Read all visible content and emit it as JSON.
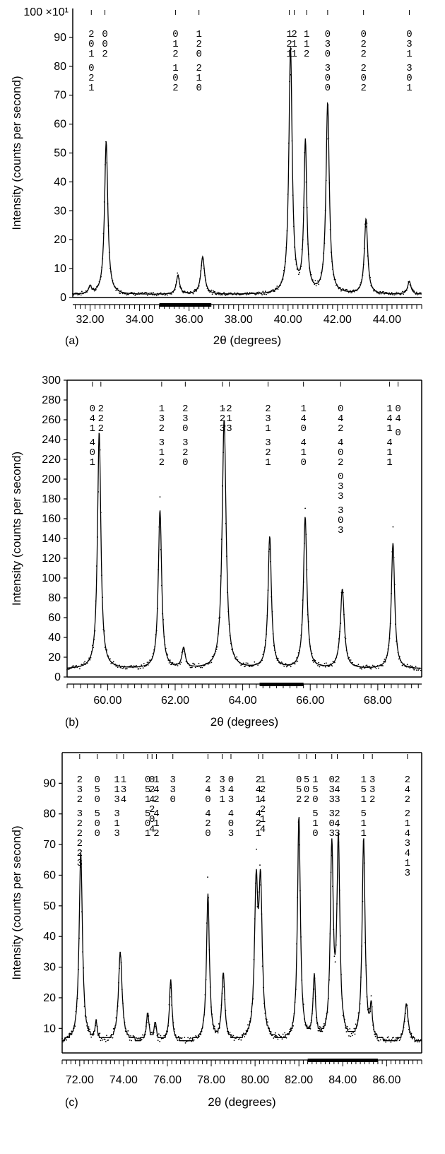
{
  "chart_data": [
    {
      "panel_label": "(a)",
      "type": "line",
      "xlabel": "2θ (degrees)",
      "ylabel": "Intensity (counts per second)",
      "y_multiplier": "×10¹",
      "top_tick_label": "100",
      "xlim": [
        31.3,
        45.4
      ],
      "ylim": [
        0,
        100
      ],
      "xticks": [
        "32.00",
        "34.00",
        "36.00",
        "38.00",
        "40.00",
        "42.00",
        "44.00"
      ],
      "yticks": [
        "0",
        "10",
        "20",
        "30",
        "40",
        "50",
        "60",
        "70",
        "80",
        "90"
      ],
      "peaks": [
        {
          "x": 32.0,
          "h": 2.5,
          "w": 0.07
        },
        {
          "x": 32.65,
          "h": 53,
          "w": 0.08
        },
        {
          "x": 35.55,
          "h": 6.5,
          "w": 0.08
        },
        {
          "x": 36.55,
          "h": 13,
          "w": 0.09
        },
        {
          "x": 40.1,
          "h": 85,
          "w": 0.08
        },
        {
          "x": 40.7,
          "h": 52,
          "w": 0.07
        },
        {
          "x": 41.6,
          "h": 66,
          "w": 0.08
        },
        {
          "x": 43.15,
          "h": 26,
          "w": 0.08
        },
        {
          "x": 44.9,
          "h": 4.5,
          "w": 0.08
        }
      ],
      "background": 1,
      "excluded_range": [
        34.8,
        36.9
      ],
      "reflections": [
        {
          "x": 32.05,
          "cols": [
            "2 0 1",
            "0 2 1"
          ]
        },
        {
          "x": 32.6,
          "cols": [
            "0 0 2"
          ]
        },
        {
          "x": 35.45,
          "cols": [
            "0 1 2",
            "1 0 2"
          ]
        },
        {
          "x": 36.4,
          "cols": [
            "1 2 0",
            "2 1 0"
          ]
        },
        {
          "x": 40.05,
          "cols": [
            "1 2 1"
          ]
        },
        {
          "x": 40.25,
          "cols": [
            "2 1 1"
          ]
        },
        {
          "x": 40.75,
          "cols": [
            "1 1 2"
          ]
        },
        {
          "x": 41.6,
          "cols": [
            "0 3 0",
            "3 0 0"
          ]
        },
        {
          "x": 43.05,
          "cols": [
            "0 2 2",
            "2 0 2"
          ]
        },
        {
          "x": 44.9,
          "cols": [
            "0 3 1",
            "3 0 1"
          ]
        }
      ]
    },
    {
      "panel_label": "(b)",
      "type": "line",
      "xlabel": "2θ (degrees)",
      "ylabel": "Intensity (counts per second)",
      "xlim": [
        58.8,
        69.3
      ],
      "ylim": [
        0,
        300
      ],
      "xticks": [
        "60.00",
        "62.00",
        "64.00",
        "66.00",
        "68.00"
      ],
      "yticks": [
        "0",
        "20",
        "40",
        "60",
        "80",
        "100",
        "120",
        "140",
        "160",
        "180",
        "200",
        "220",
        "240",
        "260",
        "280",
        "300"
      ],
      "peaks": [
        {
          "x": 59.75,
          "h": 240,
          "w": 0.06
        },
        {
          "x": 61.55,
          "h": 160,
          "w": 0.06
        },
        {
          "x": 62.25,
          "h": 20,
          "w": 0.06
        },
        {
          "x": 63.45,
          "h": 252,
          "w": 0.07
        },
        {
          "x": 64.8,
          "h": 133,
          "w": 0.06
        },
        {
          "x": 65.85,
          "h": 153,
          "w": 0.06
        },
        {
          "x": 66.95,
          "h": 80,
          "w": 0.07
        },
        {
          "x": 68.45,
          "h": 127,
          "w": 0.06
        }
      ],
      "background": 8,
      "excluded_range": [
        64.5,
        65.8
      ],
      "reflections": [
        {
          "x": 59.55,
          "cols": [
            "0 4 1",
            "4 0 1"
          ]
        },
        {
          "x": 59.8,
          "cols": [
            "2 2 2"
          ]
        },
        {
          "x": 61.6,
          "cols": [
            "1 3 2",
            "3 1 2"
          ]
        },
        {
          "x": 62.3,
          "cols": [
            "2 3 0",
            "3 2 0"
          ]
        },
        {
          "x": 63.4,
          "cols": [
            "1 2 3"
          ]
        },
        {
          "x": 63.6,
          "cols": [
            "2 1 3"
          ]
        },
        {
          "x": 64.75,
          "cols": [
            "2 3 1",
            "3 2 1"
          ]
        },
        {
          "x": 65.8,
          "cols": [
            "1 4 0",
            "4 1 0"
          ]
        },
        {
          "x": 66.9,
          "cols": [
            "0 4 2",
            "4 0 2",
            "0 3 3",
            "3 0 3"
          ]
        },
        {
          "x": 68.35,
          "cols": [
            "1 4 1",
            "4 1 1"
          ]
        },
        {
          "x": 68.6,
          "cols": [
            "0 4",
            "0"
          ]
        }
      ]
    },
    {
      "panel_label": "(c)",
      "type": "line",
      "xlabel": "2θ (degrees)",
      "ylabel": "Intensity (counts per second)",
      "xlim": [
        71.2,
        87.6
      ],
      "ylim": [
        2,
        100
      ],
      "xticks": [
        "72.00",
        "74.00",
        "76.00",
        "78.00",
        "80.00",
        "82.00",
        "84.00",
        "86.00"
      ],
      "yticks": [
        "10",
        "20",
        "30",
        "40",
        "50",
        "60",
        "70",
        "80",
        "90"
      ],
      "peaks": [
        {
          "x": 72.05,
          "h": 62,
          "w": 0.09
        },
        {
          "x": 72.75,
          "h": 6,
          "w": 0.06
        },
        {
          "x": 73.85,
          "h": 29,
          "w": 0.1
        },
        {
          "x": 75.1,
          "h": 9,
          "w": 0.07
        },
        {
          "x": 75.45,
          "h": 6,
          "w": 0.06
        },
        {
          "x": 76.15,
          "h": 20,
          "w": 0.07
        },
        {
          "x": 77.85,
          "h": 48,
          "w": 0.08
        },
        {
          "x": 78.55,
          "h": 22,
          "w": 0.08
        },
        {
          "x": 80.05,
          "h": 48,
          "w": 0.09
        },
        {
          "x": 80.25,
          "h": 48,
          "w": 0.09
        },
        {
          "x": 82.0,
          "h": 73,
          "w": 0.08
        },
        {
          "x": 82.7,
          "h": 20,
          "w": 0.07
        },
        {
          "x": 83.5,
          "h": 62,
          "w": 0.08
        },
        {
          "x": 83.8,
          "h": 64,
          "w": 0.08
        },
        {
          "x": 84.95,
          "h": 66,
          "w": 0.08
        },
        {
          "x": 85.3,
          "h": 10,
          "w": 0.06
        },
        {
          "x": 86.9,
          "h": 12,
          "w": 0.1
        }
      ],
      "background": 5.5,
      "excluded_range": [
        82.4,
        85.6
      ],
      "reflections": [
        {
          "x": 72.0,
          "cols": [
            "2 3 2",
            "3 2 2 2 2 3"
          ]
        },
        {
          "x": 72.8,
          "cols": [
            "0 5 0",
            "5 0 0"
          ]
        },
        {
          "x": 73.7,
          "cols": [
            "1 1 3",
            "3 1 3"
          ]
        },
        {
          "x": 74.0,
          "cols": [
            "1 3 4"
          ]
        },
        {
          "x": 75.1,
          "cols": [
            "0 5 1",
            "5 0 1"
          ]
        },
        {
          "x": 75.3,
          "cols": [
            "0 2 4 2 0 4"
          ]
        },
        {
          "x": 75.5,
          "cols": [
            "1 4 2",
            "4 1 2"
          ]
        },
        {
          "x": 76.25,
          "cols": [
            "3 3 0"
          ]
        },
        {
          "x": 77.85,
          "cols": [
            "2 4 0",
            "4 2 0"
          ]
        },
        {
          "x": 78.5,
          "cols": [
            "3 3 1"
          ]
        },
        {
          "x": 78.9,
          "cols": [
            "0 4 3",
            "4 0 3"
          ]
        },
        {
          "x": 80.15,
          "cols": [
            "2 4 1",
            "4 2 1"
          ]
        },
        {
          "x": 80.35,
          "cols": [
            "1 2 4 2 1 4"
          ]
        },
        {
          "x": 82.0,
          "cols": [
            "0 5 2"
          ]
        },
        {
          "x": 82.35,
          "cols": [
            "5 0 2"
          ]
        },
        {
          "x": 82.75,
          "cols": [
            "1 5 0",
            "5 1 0"
          ]
        },
        {
          "x": 83.5,
          "cols": [
            "0 3 3",
            "3 0 3"
          ]
        },
        {
          "x": 83.75,
          "cols": [
            "2 4 3",
            "2 4 3"
          ]
        },
        {
          "x": 84.95,
          "cols": [
            "1 5 1",
            "5 1 1"
          ]
        },
        {
          "x": 85.35,
          "cols": [
            "3 3 2"
          ]
        },
        {
          "x": 86.95,
          "cols": [
            "2 4 2",
            "2 1 4 3 4 1 3"
          ]
        }
      ]
    }
  ]
}
